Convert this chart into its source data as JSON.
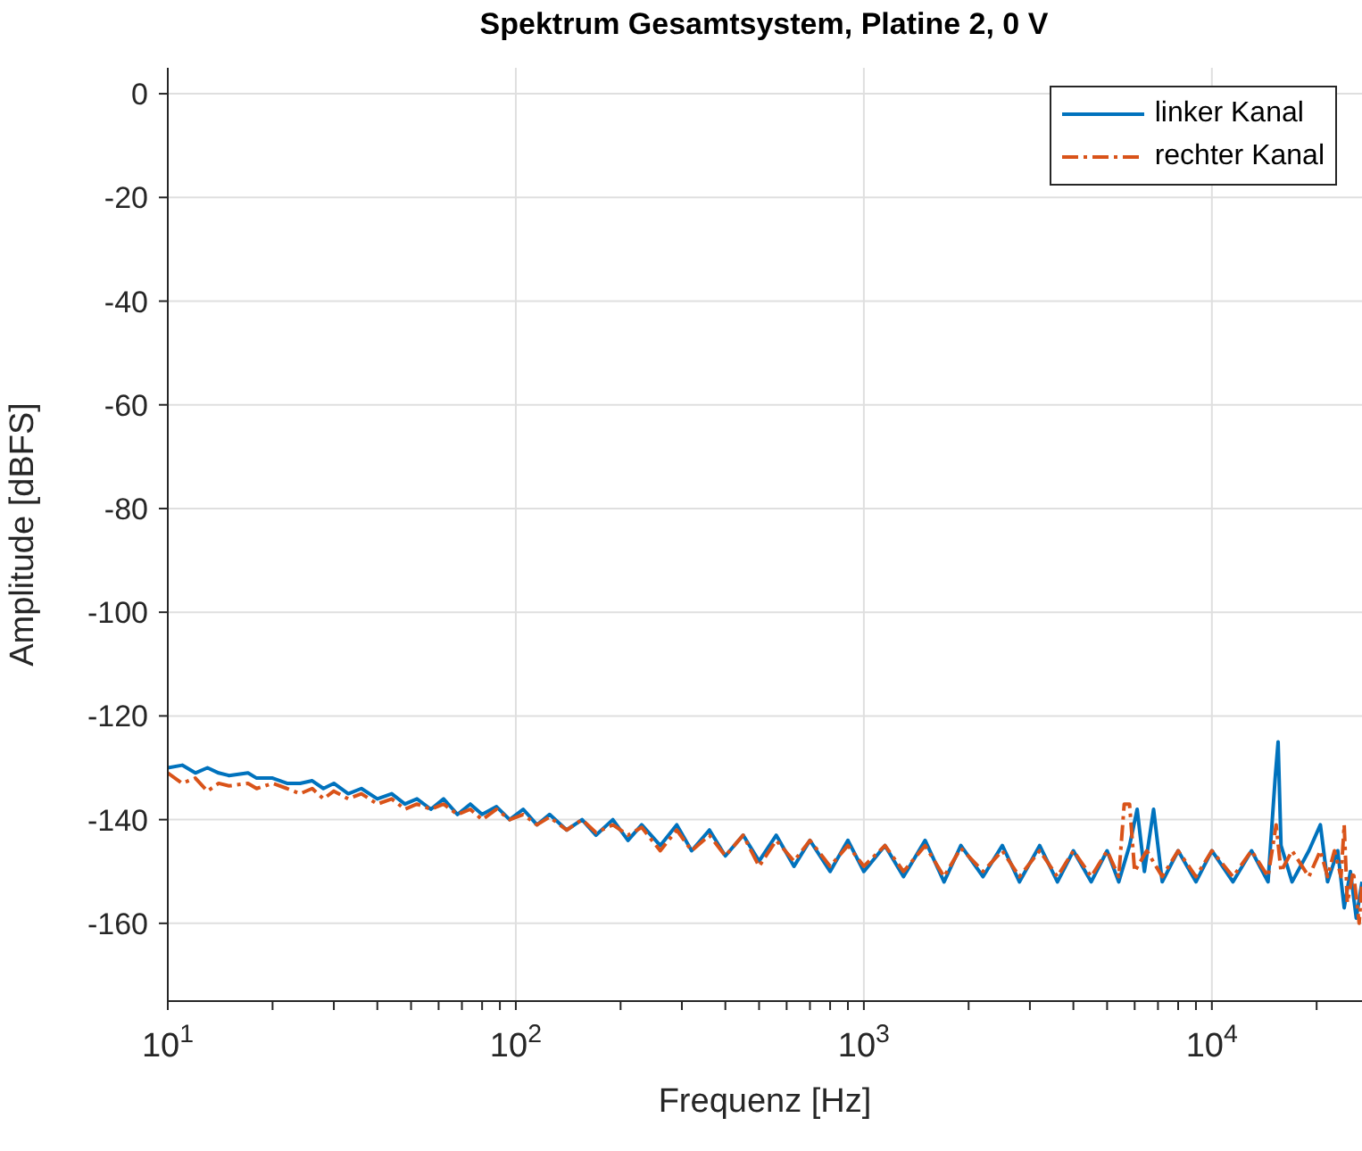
{
  "chart_data": {
    "type": "line",
    "title": "Spektrum Gesamtsystem, Platine 2, 0 V",
    "xlabel": "Frequenz [Hz]",
    "ylabel": "Amplitude [dBFS]",
    "log": "x",
    "grid": true,
    "legend": "top right",
    "marker": "none",
    "xlim": [
      10,
      27000
    ],
    "ylim": [
      -175,
      5
    ],
    "xticks": [
      {
        "value": 10,
        "label": "10$^{1}$"
      },
      {
        "value": 20,
        "label": null
      },
      {
        "value": 30,
        "label": null
      },
      {
        "value": 40,
        "label": null
      },
      {
        "value": 50,
        "label": null
      },
      {
        "value": 60,
        "label": null
      },
      {
        "value": 70,
        "label": null
      },
      {
        "value": 80,
        "label": null
      },
      {
        "value": 90,
        "label": null
      },
      {
        "value": 100,
        "label": "10$^{2}$"
      },
      {
        "value": 200,
        "label": null
      },
      {
        "value": 300,
        "label": null
      },
      {
        "value": 400,
        "label": null
      },
      {
        "value": 500,
        "label": null
      },
      {
        "value": 600,
        "label": null
      },
      {
        "value": 700,
        "label": null
      },
      {
        "value": 800,
        "label": null
      },
      {
        "value": 900,
        "label": null
      },
      {
        "value": 1000,
        "label": "10$^{3}$"
      },
      {
        "value": 2000,
        "label": null
      },
      {
        "value": 3000,
        "label": null
      },
      {
        "value": 4000,
        "label": null
      },
      {
        "value": 5000,
        "label": null
      },
      {
        "value": 6000,
        "label": null
      },
      {
        "value": 7000,
        "label": null
      },
      {
        "value": 8000,
        "label": null
      },
      {
        "value": 9000,
        "label": null
      },
      {
        "value": 10000,
        "label": "10$^{4}$"
      },
      {
        "value": 20000,
        "label": null
      }
    ],
    "yticks": [
      0,
      -20,
      -40,
      -60,
      -80,
      -100,
      -120,
      -140,
      -160
    ],
    "series": [
      {
        "name": "linker Kanal",
        "color": "#0072bd",
        "line_style": "solid",
        "x": [
          10,
          11,
          12,
          13,
          14,
          15,
          17,
          18,
          20,
          22,
          24,
          26,
          28,
          30,
          33,
          36,
          40,
          44,
          48,
          52,
          57,
          62,
          68,
          74,
          80,
          88,
          96,
          105,
          115,
          125,
          140,
          155,
          170,
          190,
          210,
          230,
          260,
          290,
          320,
          360,
          400,
          450,
          500,
          560,
          630,
          700,
          800,
          900,
          1000,
          1150,
          1300,
          1500,
          1700,
          1900,
          2200,
          2500,
          2800,
          3200,
          3600,
          4000,
          4500,
          5000,
          5400,
          5800,
          6100,
          6400,
          6800,
          7200,
          8000,
          9000,
          10000,
          11500,
          13000,
          14500,
          15200,
          15500,
          15800,
          17000,
          19000,
          20500,
          21500,
          23000,
          24000,
          25000,
          26000,
          27000
        ],
        "values": [
          -130,
          -129.5,
          -131,
          -130,
          -131,
          -131.5,
          -131,
          -132,
          -132,
          -133,
          -133,
          -132.5,
          -134,
          -133,
          -135,
          -134,
          -136,
          -135,
          -137,
          -136,
          -138,
          -136,
          -139,
          -137,
          -139,
          -137.5,
          -140,
          -138,
          -141,
          -139,
          -142,
          -140,
          -143,
          -140,
          -144,
          -141,
          -145,
          -141,
          -146,
          -142,
          -147,
          -143,
          -148,
          -143,
          -149,
          -144,
          -150,
          -144,
          -150,
          -145,
          -151,
          -144,
          -152,
          -145,
          -151,
          -145,
          -152,
          -145,
          -152,
          -146,
          -152,
          -146,
          -152,
          -145,
          -138,
          -150,
          -138,
          -152,
          -146,
          -152,
          -146,
          -152,
          -146,
          -152,
          -132,
          -125,
          -145,
          -152,
          -146,
          -141,
          -152,
          -146,
          -157,
          -150,
          -159,
          -152
        ]
      },
      {
        "name": "rechter Kanal",
        "color": "#d95319",
        "line_style": "dashed",
        "x": [
          10,
          11,
          12,
          13,
          14,
          15,
          17,
          18,
          20,
          22,
          24,
          26,
          28,
          30,
          33,
          36,
          40,
          44,
          48,
          52,
          57,
          62,
          68,
          74,
          80,
          88,
          96,
          105,
          115,
          125,
          140,
          155,
          170,
          190,
          210,
          230,
          260,
          290,
          320,
          360,
          400,
          450,
          500,
          560,
          630,
          700,
          800,
          900,
          1000,
          1150,
          1300,
          1500,
          1700,
          1900,
          2200,
          2500,
          2800,
          3200,
          3600,
          4000,
          4500,
          5000,
          5400,
          5600,
          5800,
          6000,
          6500,
          7200,
          8000,
          9000,
          10000,
          11500,
          13000,
          14500,
          15300,
          15800,
          17000,
          19000,
          20500,
          21500,
          22500,
          23500,
          24000,
          24500,
          25500,
          26500,
          27000
        ],
        "values": [
          -131,
          -133,
          -132,
          -134.5,
          -133,
          -133.5,
          -133,
          -134,
          -133,
          -134,
          -135,
          -134,
          -136,
          -134.5,
          -136,
          -135,
          -137,
          -136,
          -138,
          -137,
          -138,
          -137,
          -139,
          -138,
          -140,
          -138,
          -140,
          -139,
          -141,
          -139.5,
          -142,
          -140,
          -142.5,
          -141,
          -143,
          -141.5,
          -146,
          -142,
          -146,
          -143,
          -147,
          -143,
          -149,
          -144,
          -148,
          -144,
          -149,
          -145,
          -149,
          -145,
          -150,
          -145,
          -151,
          -145.5,
          -150,
          -146,
          -151,
          -146,
          -151,
          -146,
          -151,
          -146,
          -151,
          -137,
          -137,
          -150,
          -146,
          -151,
          -146,
          -151,
          -146,
          -151,
          -146,
          -151,
          -141,
          -150,
          -146,
          -151,
          -146,
          -151,
          -146,
          -151,
          -141,
          -156,
          -150,
          -160,
          -152
        ]
      }
    ]
  }
}
